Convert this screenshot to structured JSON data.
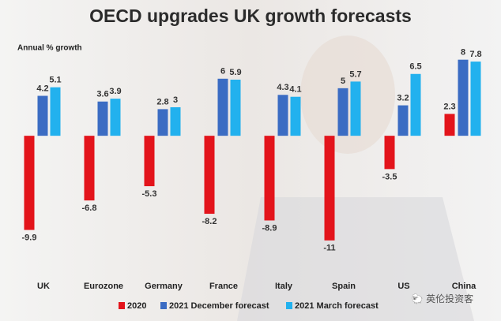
{
  "chart_data": {
    "type": "bar",
    "title": "OECD upgrades UK growth forecasts",
    "y_label": "Annual % growth",
    "categories": [
      "UK",
      "Eurozone",
      "Germany",
      "France",
      "Italy",
      "Spain",
      "US",
      "China"
    ],
    "series": [
      {
        "name": "2020",
        "color": "#e3141b",
        "values": [
          -9.9,
          -6.8,
          -5.3,
          -8.2,
          -8.9,
          -11,
          -3.5,
          2.3
        ]
      },
      {
        "name": "2021 December forecast",
        "color": "#3b6cc3",
        "values": [
          4.2,
          3.6,
          2.8,
          6,
          4.3,
          5,
          3.2,
          8
        ]
      },
      {
        "name": "2021 March forecast",
        "color": "#22b1ee",
        "values": [
          5.1,
          3.9,
          3,
          5.9,
          4.1,
          5.7,
          6.5,
          7.8
        ]
      }
    ],
    "ylim": [
      -14,
      9.3
    ]
  }
}
